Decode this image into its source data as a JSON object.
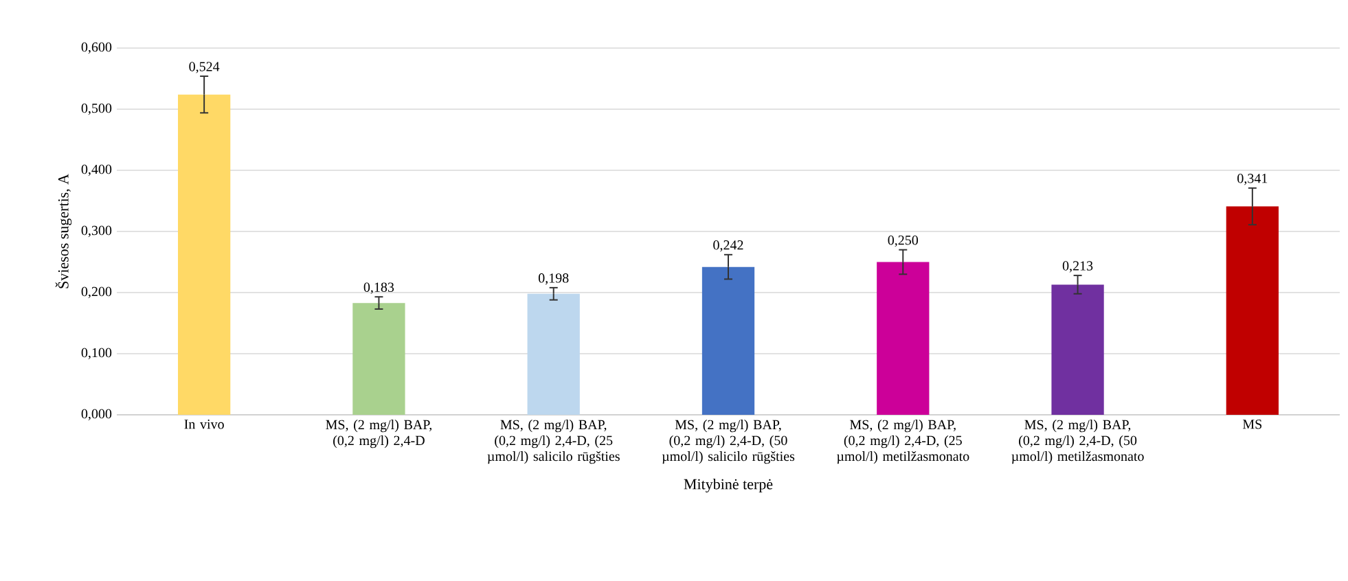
{
  "chart_data": {
    "type": "bar",
    "xlabel": "Mitybinė terpė",
    "ylabel": "Šviesos sugertis, A",
    "categories": [
      "In vivo",
      "MS, (2 mg/l) BAP, (0,2 mg/l) 2,4-D",
      "MS, (2 mg/l) BAP, (0,2 mg/l) 2,4-D, (25 µmol/l) salicilo rūgšties",
      "MS, (2 mg/l) BAP, (0,2 mg/l) 2,4-D, (50 µmol/l) salicilo rūgšties",
      "MS, (2 mg/l) BAP, (0,2 mg/l) 2,4-D, (25 µmol/l) metilžasmonato",
      "MS, (2 mg/l) BAP, (0,2 mg/l) 2,4-D, (50 µmol/l) metilžasmonato",
      "MS"
    ],
    "values": [
      0.524,
      0.183,
      0.198,
      0.242,
      0.25,
      0.213,
      0.341
    ],
    "value_labels": [
      "0,524",
      "0,183",
      "0,198",
      "0,242",
      "0,250",
      "0,213",
      "0,341"
    ],
    "errors": [
      0.03,
      0.01,
      0.01,
      0.02,
      0.02,
      0.015,
      0.03
    ],
    "colors": [
      "#ffd966",
      "#a9d18e",
      "#bdd7ee",
      "#4472c4",
      "#cc0099",
      "#7030a0",
      "#c00000"
    ],
    "ylim": [
      0,
      0.6
    ],
    "yticks": [
      {
        "value": 0,
        "label": "0,000"
      },
      {
        "value": 0.1,
        "label": "0,100"
      },
      {
        "value": 0.2,
        "label": "0,200"
      },
      {
        "value": 0.3,
        "label": "0,300"
      },
      {
        "value": 0.4,
        "label": "0,400"
      },
      {
        "value": 0.5,
        "label": "0,500"
      },
      {
        "value": 0.6,
        "label": "0,600"
      }
    ],
    "grid": "y"
  }
}
